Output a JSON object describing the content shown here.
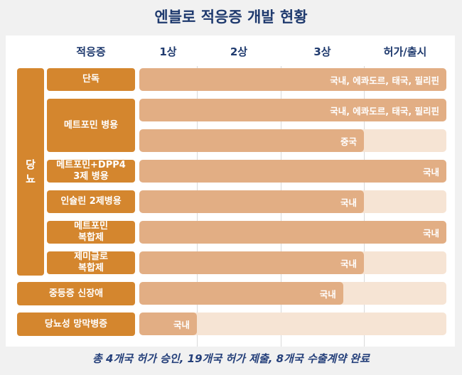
{
  "title": "엔블로 적응증 개발 현황",
  "chart_data": {
    "type": "bar",
    "orientation": "horizontal",
    "title": "엔블로 적응증 개발 현황",
    "columns": [
      "적응증",
      "1상",
      "2상",
      "3상",
      "허가/출시"
    ],
    "stages": [
      "1상",
      "2상",
      "3상",
      "허가/출시"
    ],
    "group_label": "당뇨",
    "xlim": [
      0,
      4
    ],
    "rows": [
      {
        "indication": "단독",
        "group": "당뇨",
        "progress": 4,
        "label": "국내, 에콰도르, 태국, 필리핀"
      },
      {
        "indication": "메트포민 병용",
        "group": "당뇨",
        "progress": 4,
        "label": "국내, 에콰도르, 태국, 필리핀"
      },
      {
        "indication": "메트포민 병용",
        "group": "당뇨",
        "progress": 3,
        "label": "중국"
      },
      {
        "indication": "메트포민+DPP4\n3제 병용",
        "group": "당뇨",
        "progress": 4,
        "label": "국내"
      },
      {
        "indication": "인슐린 2제병용",
        "group": "당뇨",
        "progress": 3,
        "label": "국내"
      },
      {
        "indication": "메트포민\n복합제",
        "group": "당뇨",
        "progress": 4,
        "label": "국내"
      },
      {
        "indication": "제미글로\n복합제",
        "group": "당뇨",
        "progress": 3,
        "label": "국내"
      },
      {
        "indication": "중등증 신장애",
        "group": "",
        "progress": 2.75,
        "label": "국내"
      },
      {
        "indication": "당뇨성 망막병증",
        "group": "",
        "progress": 1,
        "label": "국내"
      }
    ],
    "colors": {
      "label": "#d4862e",
      "bar": "#e2ae84",
      "track": "#f6e4d4",
      "title": "#1f3a6e"
    }
  },
  "footer": "총 4개국 허가 승인, 19개국 허가 제출, 8개국 수출계약 완료"
}
